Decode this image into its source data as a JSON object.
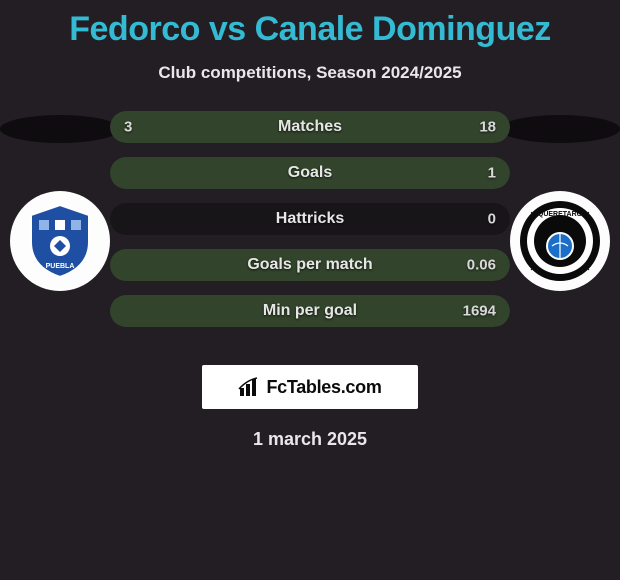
{
  "title": "Fedorco vs Canale Dominguez",
  "subtitle": "Club competitions, Season 2024/2025",
  "date": "1 march 2025",
  "colors": {
    "background": "#231e24",
    "title": "#34bbd4",
    "text": "#e8e8e8",
    "bar_bg": "#181519",
    "bar_fill": "#32442b",
    "brand_bg": "#ffffff",
    "brand_text": "#0b0b0b"
  },
  "brand": {
    "label": "FcTables.com"
  },
  "stats": [
    {
      "label": "Matches",
      "left_val": "3",
      "right_val": "18",
      "left_pct": 14,
      "right_pct": 86
    },
    {
      "label": "Goals",
      "left_val": "",
      "right_val": "1",
      "left_pct": 0,
      "right_pct": 100
    },
    {
      "label": "Hattricks",
      "left_val": "",
      "right_val": "0",
      "left_pct": 0,
      "right_pct": 0
    },
    {
      "label": "Goals per match",
      "left_val": "",
      "right_val": "0.06",
      "left_pct": 0,
      "right_pct": 100
    },
    {
      "label": "Min per goal",
      "left_val": "",
      "right_val": "1694",
      "left_pct": 0,
      "right_pct": 100
    }
  ],
  "teams": {
    "left": {
      "name": "Puebla FC",
      "badge_bg": "#fdfdfd",
      "primary": "#1e4fa3",
      "secondary": "#8fb4e6"
    },
    "right": {
      "name": "Querétaro",
      "badge_bg": "#fdfdfd",
      "primary": "#0a0a0a",
      "secondary": "#1c6fc9"
    }
  }
}
